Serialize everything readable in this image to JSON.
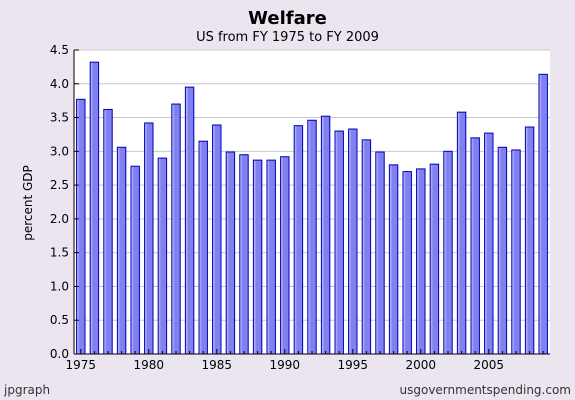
{
  "header": {
    "title": "Welfare",
    "subtitle": "US from FY 1975 to FY 2009"
  },
  "footer": {
    "left": "jpgraph",
    "right": "usgovernmentspending.com"
  },
  "colors": {
    "bar_fill": "#8080f0",
    "bar_edge": "#0000b0",
    "bar_highlight": "#c8c8ff",
    "plot_bg": "#ffffff",
    "frame_bg": "#ebe5f0",
    "grid": "#c8c8c8"
  },
  "chart_data": {
    "type": "bar",
    "title": "Welfare",
    "subtitle": "US from FY 1975 to FY 2009",
    "xlabel": "",
    "ylabel": "percent GDP",
    "ylim": [
      0,
      4.5
    ],
    "yticks": [
      0.0,
      0.5,
      1.0,
      1.5,
      2.0,
      2.5,
      3.0,
      3.5,
      4.0,
      4.5
    ],
    "ytick_labels": [
      "0.0",
      "0.5",
      "1.0",
      "1.5",
      "2.0",
      "2.5",
      "3.0",
      "3.5",
      "4.0",
      "4.5"
    ],
    "xtick_labels": [
      "1975",
      "1980",
      "1985",
      "1990",
      "1995",
      "2000",
      "2005"
    ],
    "grid": true,
    "categories": [
      1975,
      1976,
      1977,
      1978,
      1979,
      1980,
      1981,
      1982,
      1983,
      1984,
      1985,
      1986,
      1987,
      1988,
      1989,
      1990,
      1991,
      1992,
      1993,
      1994,
      1995,
      1996,
      1997,
      1998,
      1999,
      2000,
      2001,
      2002,
      2003,
      2004,
      2005,
      2006,
      2007,
      2008,
      2009
    ],
    "values": [
      3.77,
      4.32,
      3.62,
      3.06,
      2.78,
      3.42,
      2.9,
      3.7,
      3.95,
      3.15,
      3.39,
      2.99,
      2.95,
      2.87,
      2.87,
      2.92,
      3.38,
      3.46,
      3.52,
      3.3,
      3.33,
      3.17,
      2.99,
      2.8,
      2.7,
      2.74,
      2.81,
      3.0,
      3.58,
      3.2,
      3.27,
      3.06,
      3.02,
      3.36,
      4.14
    ]
  }
}
